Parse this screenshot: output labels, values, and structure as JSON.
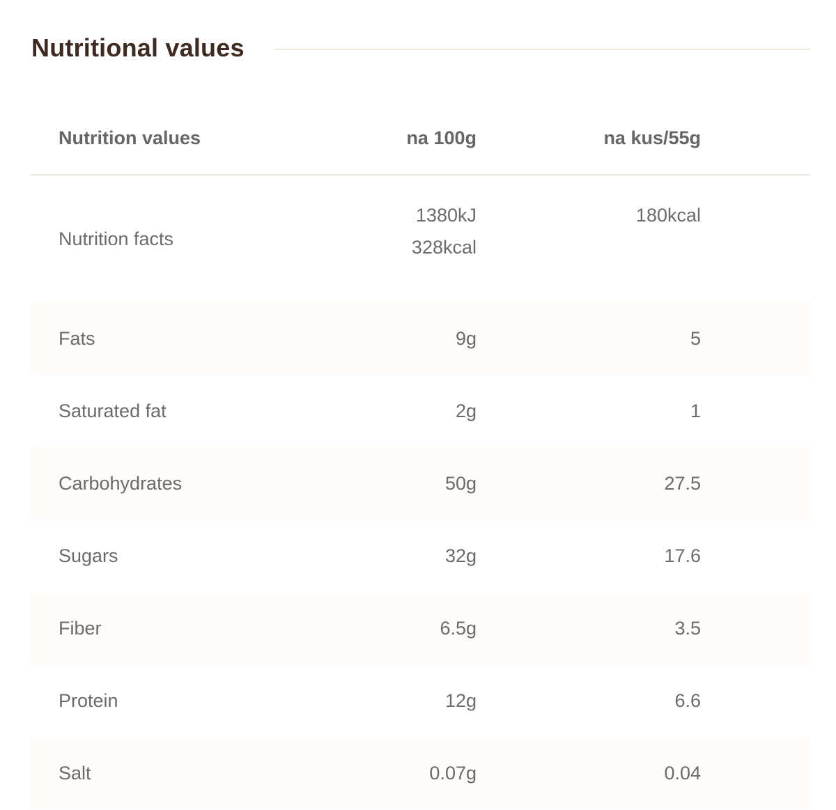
{
  "section": {
    "title": "Nutritional values"
  },
  "table": {
    "headers": {
      "label": "Nutrition values",
      "per_100g": "na 100g",
      "per_piece": "na kus/55g"
    },
    "energy": {
      "label": "Nutrition facts",
      "per_100g_kj": "1380kJ",
      "per_100g_kcal": "328kcal",
      "per_piece": "180kcal"
    },
    "rows": [
      {
        "label": "Fats",
        "per_100g": "9g",
        "per_piece": "5"
      },
      {
        "label": "Saturated fat",
        "per_100g": "2g",
        "per_piece": "1"
      },
      {
        "label": "Carbohydrates",
        "per_100g": "50g",
        "per_piece": "27.5"
      },
      {
        "label": "Sugars",
        "per_100g": "32g",
        "per_piece": "17.6"
      },
      {
        "label": "Fiber",
        "per_100g": "6.5g",
        "per_piece": "3.5"
      },
      {
        "label": "Protein",
        "per_100g": "12g",
        "per_piece": "6.6"
      },
      {
        "label": "Salt",
        "per_100g": "0.07g",
        "per_piece": "0.04"
      }
    ]
  },
  "colors": {
    "title": "#3f2a22",
    "text": "#6b6b6b",
    "header_text": "#666666",
    "rule": "#ece6dd",
    "row_alt_background": "#fffbf6"
  }
}
